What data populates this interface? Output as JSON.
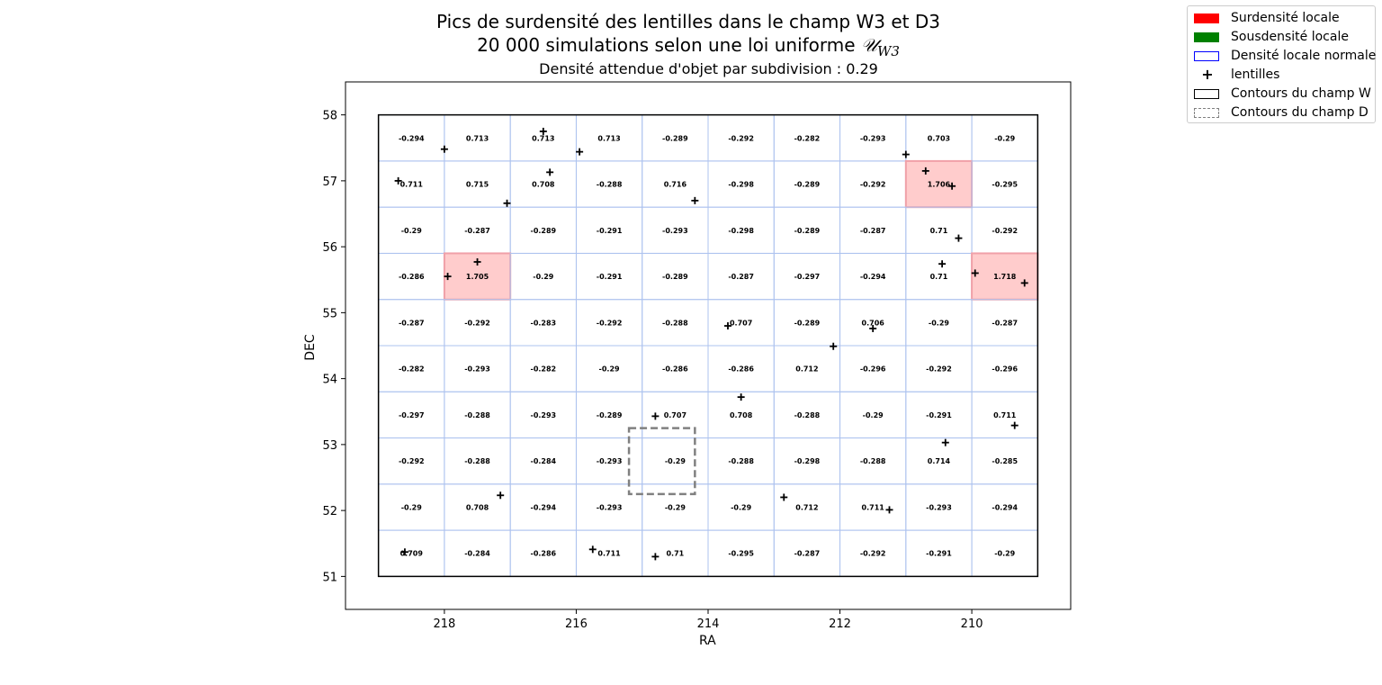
{
  "chart_data": {
    "type": "heatmap",
    "title": "Pics de surdensité des lentilles dans le champ W3 et D3",
    "subtitle_line": "20 000 simulations selon une loi uniforme",
    "subtitle_symbol": "𝒰",
    "subtitle_subscript": "W3",
    "density_line": "Densité attendue d'objet par subdivision : 0.29",
    "xlabel": "RA",
    "ylabel": "DEC",
    "xlim": [
      219.5,
      208.5
    ],
    "ylim": [
      50.5,
      58.5
    ],
    "x_inverted": true,
    "xticks": [
      218,
      216,
      214,
      212,
      210
    ],
    "yticks": [
      51,
      52,
      53,
      54,
      55,
      56,
      57,
      58
    ],
    "grid": {
      "ra_min": 209,
      "ra_max": 219,
      "dec_min": 51,
      "dec_max": 58,
      "ncols": 10,
      "nrows": 10,
      "values_top_to_bottom": [
        [
          "-0.294",
          "0.713",
          "0.713",
          "0.713",
          "-0.289",
          "-0.292",
          "-0.282",
          "-0.293",
          "0.703",
          "-0.29"
        ],
        [
          "0.711",
          "0.715",
          "0.708",
          "-0.288",
          "0.716",
          "-0.298",
          "-0.289",
          "-0.292",
          "1.706",
          "-0.295"
        ],
        [
          "-0.29",
          "-0.287",
          "-0.289",
          "-0.291",
          "-0.293",
          "-0.298",
          "-0.289",
          "-0.287",
          "0.71",
          "-0.292"
        ],
        [
          "-0.286",
          "1.705",
          "-0.29",
          "-0.291",
          "-0.289",
          "-0.287",
          "-0.297",
          "-0.294",
          "0.71",
          "1.718"
        ],
        [
          "-0.287",
          "-0.292",
          "-0.283",
          "-0.292",
          "-0.288",
          "0.707",
          "-0.289",
          "0.706",
          "-0.29",
          "-0.287"
        ],
        [
          "-0.282",
          "-0.293",
          "-0.282",
          "-0.29",
          "-0.286",
          "-0.286",
          "0.712",
          "-0.296",
          "-0.292",
          "-0.296"
        ],
        [
          "-0.297",
          "-0.288",
          "-0.293",
          "-0.289",
          "0.707",
          "0.708",
          "-0.288",
          "-0.29",
          "-0.291",
          "0.711"
        ],
        [
          "-0.292",
          "-0.288",
          "-0.284",
          "-0.293",
          "-0.29",
          "-0.288",
          "-0.298",
          "-0.288",
          "0.714",
          "-0.285"
        ],
        [
          "-0.29",
          "0.708",
          "-0.294",
          "-0.293",
          "-0.29",
          "-0.29",
          "0.712",
          "0.711",
          "-0.293",
          "-0.294"
        ],
        [
          "0.709",
          "-0.284",
          "-0.286",
          "0.711",
          "0.71",
          "-0.295",
          "-0.287",
          "-0.292",
          "-0.291",
          "-0.29"
        ]
      ],
      "overdense_cells": [
        [
          1,
          8
        ],
        [
          3,
          1
        ],
        [
          3,
          9
        ]
      ]
    },
    "field_w_contour": {
      "ra": [
        209,
        219
      ],
      "dec": [
        51,
        58
      ]
    },
    "field_d_contour": {
      "ra": [
        214.2,
        215.2
      ],
      "dec": [
        52.25,
        53.25
      ]
    },
    "lenses": [
      {
        "ra": 216.5,
        "dec": 57.75
      },
      {
        "ra": 218.0,
        "dec": 57.48
      },
      {
        "ra": 215.95,
        "dec": 57.44
      },
      {
        "ra": 218.7,
        "dec": 57.0
      },
      {
        "ra": 216.4,
        "dec": 57.13
      },
      {
        "ra": 217.05,
        "dec": 56.66
      },
      {
        "ra": 214.2,
        "dec": 56.7
      },
      {
        "ra": 211.0,
        "dec": 57.4
      },
      {
        "ra": 210.7,
        "dec": 57.15
      },
      {
        "ra": 210.3,
        "dec": 56.92
      },
      {
        "ra": 210.2,
        "dec": 56.13
      },
      {
        "ra": 217.5,
        "dec": 55.77
      },
      {
        "ra": 217.95,
        "dec": 55.55
      },
      {
        "ra": 210.45,
        "dec": 55.74
      },
      {
        "ra": 209.95,
        "dec": 55.6
      },
      {
        "ra": 209.2,
        "dec": 55.45
      },
      {
        "ra": 213.7,
        "dec": 54.8
      },
      {
        "ra": 211.5,
        "dec": 54.76
      },
      {
        "ra": 212.1,
        "dec": 54.49
      },
      {
        "ra": 213.5,
        "dec": 53.72
      },
      {
        "ra": 214.8,
        "dec": 53.43
      },
      {
        "ra": 209.35,
        "dec": 53.29
      },
      {
        "ra": 210.4,
        "dec": 53.03
      },
      {
        "ra": 217.15,
        "dec": 52.23
      },
      {
        "ra": 212.85,
        "dec": 52.2
      },
      {
        "ra": 211.25,
        "dec": 52.01
      },
      {
        "ra": 218.6,
        "dec": 51.37
      },
      {
        "ra": 215.75,
        "dec": 51.41
      },
      {
        "ra": 214.8,
        "dec": 51.3
      }
    ],
    "colors": {
      "overdense_fill": "#ffcccc",
      "overdense_edge": "#f0a0a8",
      "grid_line": "#aec3ef",
      "field_w": "#000000",
      "field_d": "#808080",
      "lens_marker": "#000000"
    },
    "legend_position": "upper right outside",
    "legend": [
      {
        "label": "Surdensité locale",
        "kind": "fill",
        "color": "#ff0000"
      },
      {
        "label": "Sousdensité locale",
        "kind": "fill",
        "color": "#008000"
      },
      {
        "label": "Densité locale normale",
        "kind": "outline",
        "color": "#0000ff"
      },
      {
        "label": "lentilles",
        "kind": "marker",
        "color": "#000000"
      },
      {
        "label": "Contours du champ W",
        "kind": "outline",
        "color": "#000000"
      },
      {
        "label": "Contours du champ D",
        "kind": "dashed",
        "color": "#808080"
      }
    ]
  }
}
